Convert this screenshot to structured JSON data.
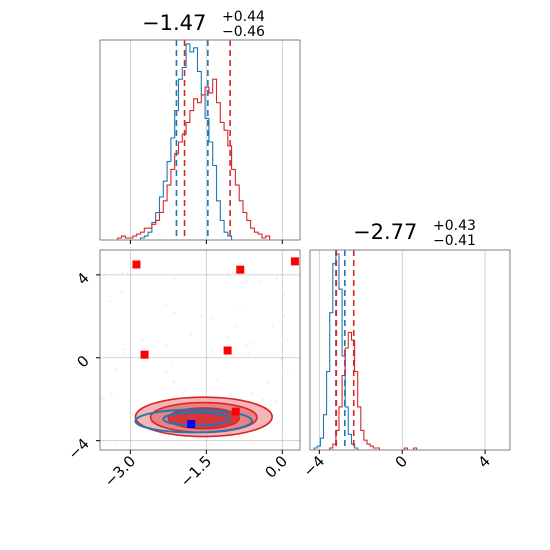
{
  "chart_data": {
    "type": "corner",
    "parameters": [
      {
        "id": "p1",
        "title": {
          "median": "−1.47",
          "upper": "+0.44",
          "lower": "−0.46"
        },
        "ticks": [
          -3.0,
          -1.5,
          0.0
        ],
        "tick_labels": [
          "−3.0",
          "−1.5",
          "0.0"
        ],
        "range": [
          -3.6,
          0.35
        ]
      },
      {
        "id": "p2",
        "title": {
          "median": "−2.77",
          "upper": "+0.43",
          "lower": "−0.41"
        },
        "ticks": [
          -4,
          0,
          4
        ],
        "tick_labels": [
          "−4",
          "0",
          "4"
        ],
        "range": [
          -4.45,
          5.2
        ]
      }
    ],
    "series": [
      {
        "color": "#1f77b4",
        "p1_hist": {
          "edges_start": -3.4,
          "bin_width": 0.075,
          "counts": [
            0,
            0,
            0,
            0,
            0,
            0,
            0,
            0,
            1,
            2,
            4,
            9,
            14,
            22,
            30,
            40,
            52,
            66,
            82,
            88,
            100,
            96,
            98,
            86,
            74,
            62,
            50,
            38,
            20,
            10,
            4,
            2,
            0,
            0,
            0,
            0,
            0,
            0,
            0,
            0,
            0,
            0,
            0,
            0,
            0,
            0,
            0,
            0,
            0,
            0,
            0,
            0,
            0
          ]
        },
        "p1_lines": [
          -2.09,
          -1.47
        ],
        "p2_hist": {
          "edges_start": -4.4,
          "bin_width": 0.15,
          "counts": [
            0,
            1,
            2,
            6,
            18,
            40,
            70,
            95,
            100,
            82,
            48,
            22,
            8,
            3,
            1,
            0,
            0,
            0,
            0,
            0,
            0,
            0,
            0,
            0,
            0,
            0,
            0,
            0,
            0,
            0,
            0,
            0,
            0,
            0,
            0,
            0,
            0,
            0,
            0,
            0,
            0,
            0,
            0,
            0,
            0,
            0,
            0,
            0,
            0,
            0,
            0,
            0,
            0,
            0,
            0,
            0,
            0,
            0,
            0,
            0,
            0,
            0,
            0,
            0,
            0
          ]
        },
        "p2_lines": [
          -3.2,
          -2.77
        ],
        "contours": [
          {
            "cx": -1.75,
            "cy": -3.05,
            "rx": 1.15,
            "ry": 0.55
          },
          {
            "cx": -1.7,
            "cy": -2.95,
            "rx": 0.65,
            "ry": 0.32
          }
        ],
        "marker": {
          "x": -1.8,
          "y": -3.2
        }
      },
      {
        "color": "#d62728",
        "p1_hist": {
          "edges_start": -3.4,
          "bin_width": 0.075,
          "counts": [
            0,
            0,
            1,
            2,
            1,
            1,
            2,
            3,
            4,
            6,
            6,
            8,
            10,
            14,
            20,
            28,
            36,
            44,
            50,
            54,
            60,
            66,
            72,
            70,
            74,
            78,
            75,
            82,
            70,
            60,
            56,
            48,
            36,
            28,
            20,
            14,
            10,
            6,
            4,
            3,
            1,
            2,
            0,
            0,
            0,
            0,
            0,
            0,
            0,
            0,
            0,
            0,
            0
          ]
        },
        "p1_lines": [
          -1.93,
          -1.03
        ],
        "p2_hist": {
          "edges_start": -4.4,
          "bin_width": 0.15,
          "counts": [
            0,
            0,
            0,
            0,
            0,
            0,
            1,
            3,
            10,
            22,
            38,
            52,
            60,
            56,
            40,
            22,
            10,
            5,
            3,
            2,
            1,
            1,
            0,
            0,
            0,
            0,
            0,
            0,
            0,
            0,
            1,
            0,
            0,
            1,
            0,
            0,
            0,
            0,
            0,
            0,
            0,
            0,
            0,
            0,
            0,
            0,
            0,
            0,
            0,
            0,
            0,
            0,
            0,
            0,
            0,
            0,
            0,
            0,
            0,
            0,
            0,
            0,
            0,
            0,
            0
          ]
        },
        "p2_lines": [
          -3.18,
          -2.34
        ],
        "contours": [
          {
            "cx": -1.55,
            "cy": -2.85,
            "rx": 1.35,
            "ry": 0.95
          },
          {
            "cx": -1.55,
            "cy": -2.88,
            "rx": 1.05,
            "ry": 0.72
          },
          {
            "cx": -1.55,
            "cy": -2.92,
            "rx": 0.7,
            "ry": 0.5
          }
        ],
        "markers": [
          {
            "x": -2.88,
            "y": 4.5
          },
          {
            "x": -0.83,
            "y": 4.25
          },
          {
            "x": 0.25,
            "y": 4.65
          },
          {
            "x": -2.72,
            "y": 0.15
          },
          {
            "x": -1.08,
            "y": 0.35
          },
          {
            "x": -0.92,
            "y": -2.6
          }
        ]
      }
    ]
  }
}
